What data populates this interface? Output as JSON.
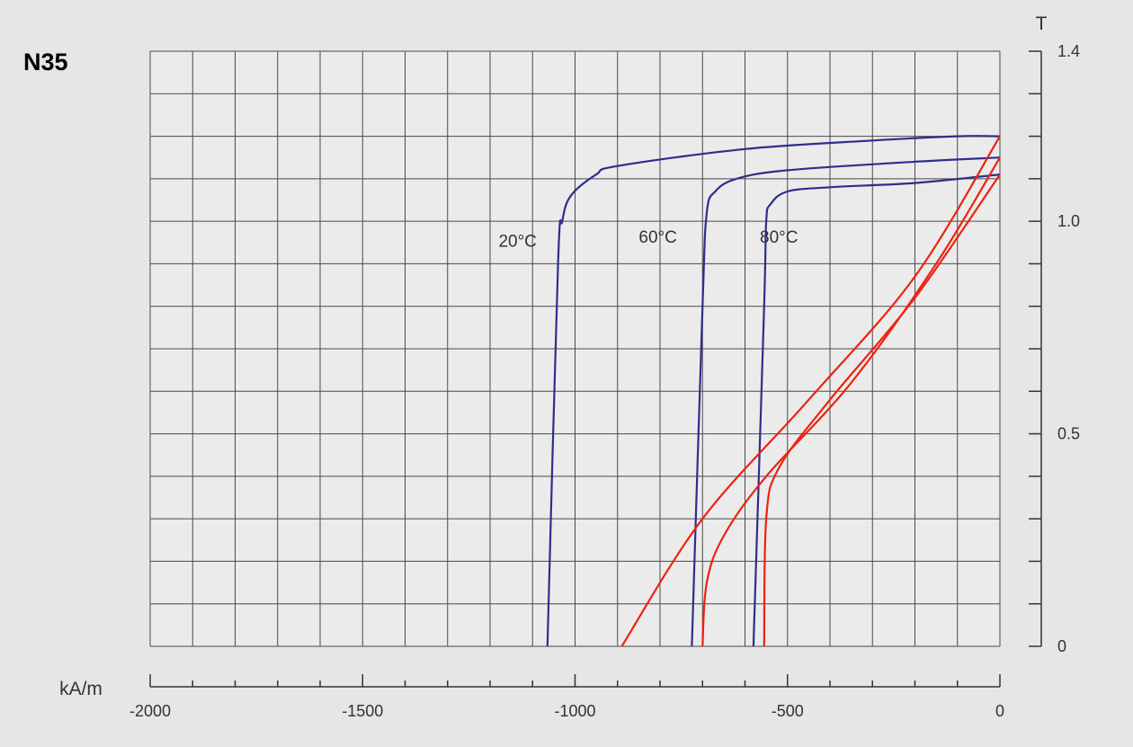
{
  "chart_data": {
    "type": "line",
    "title": "N35",
    "xlabel": "kA/m",
    "ylabel": "T",
    "xlim": [
      -2000,
      0
    ],
    "ylim": [
      0,
      1.4
    ],
    "x_ticks": [
      -2000,
      -1500,
      -1000,
      -500,
      0
    ],
    "x_tick_labels": [
      "-2000",
      "-1500",
      "-1000",
      "-500",
      "0"
    ],
    "y_ticks": [
      0,
      0.5,
      1.0,
      1.4
    ],
    "y_tick_labels": [
      "0",
      "0.5",
      "1.0",
      "1.4"
    ],
    "grid": true,
    "colors": {
      "background": "#e6e6e6",
      "plot_bg": "#ebebeb",
      "grid": "#4a4a4a",
      "j_curve": "#2e2e8c",
      "b_curve": "#ee2211"
    },
    "series": [
      {
        "name": "20°C",
        "kind": "J",
        "color": "#2e2e8c",
        "points": [
          [
            -1065,
            0
          ],
          [
            -1040,
            0.9
          ],
          [
            -1030,
            1.0
          ],
          [
            -1010,
            1.06
          ],
          [
            -950,
            1.11
          ],
          [
            -900,
            1.13
          ],
          [
            -600,
            1.17
          ],
          [
            -300,
            1.19
          ],
          [
            -100,
            1.2
          ],
          [
            0,
            1.2
          ]
        ]
      },
      {
        "name": "60°C",
        "kind": "J",
        "color": "#2e2e8c",
        "points": [
          [
            -725,
            0
          ],
          [
            -700,
            0.8
          ],
          [
            -690,
            1.02
          ],
          [
            -670,
            1.07
          ],
          [
            -620,
            1.1
          ],
          [
            -500,
            1.12
          ],
          [
            -200,
            1.14
          ],
          [
            0,
            1.15
          ]
        ]
      },
      {
        "name": "80°C",
        "kind": "J",
        "color": "#2e2e8c",
        "points": [
          [
            -580,
            0
          ],
          [
            -555,
            0.8
          ],
          [
            -550,
            1.0
          ],
          [
            -540,
            1.04
          ],
          [
            -500,
            1.07
          ],
          [
            -400,
            1.08
          ],
          [
            -200,
            1.09
          ],
          [
            0,
            1.11
          ]
        ]
      },
      {
        "kind": "B",
        "color": "#ee2211",
        "points": [
          [
            -890,
            0
          ],
          [
            -700,
            0.3
          ],
          [
            -450,
            0.58
          ],
          [
            -200,
            0.87
          ],
          [
            0,
            1.2
          ]
        ]
      },
      {
        "kind": "B",
        "color": "#ee2211",
        "points": [
          [
            -700,
            0
          ],
          [
            -690,
            0.15
          ],
          [
            -650,
            0.26
          ],
          [
            -550,
            0.4
          ],
          [
            -350,
            0.62
          ],
          [
            -150,
            0.9
          ],
          [
            0,
            1.15
          ]
        ]
      },
      {
        "kind": "B",
        "color": "#ee2211",
        "points": [
          [
            -555,
            0
          ],
          [
            -550,
            0.3
          ],
          [
            -520,
            0.42
          ],
          [
            -400,
            0.58
          ],
          [
            -200,
            0.82
          ],
          [
            0,
            1.11
          ]
        ]
      }
    ],
    "annotations": [
      {
        "text": "20°C",
        "x": -1180,
        "y": 0.94
      },
      {
        "text": "60°C",
        "x": -850,
        "y": 0.95
      },
      {
        "text": "80°C",
        "x": -565,
        "y": 0.95
      }
    ]
  }
}
